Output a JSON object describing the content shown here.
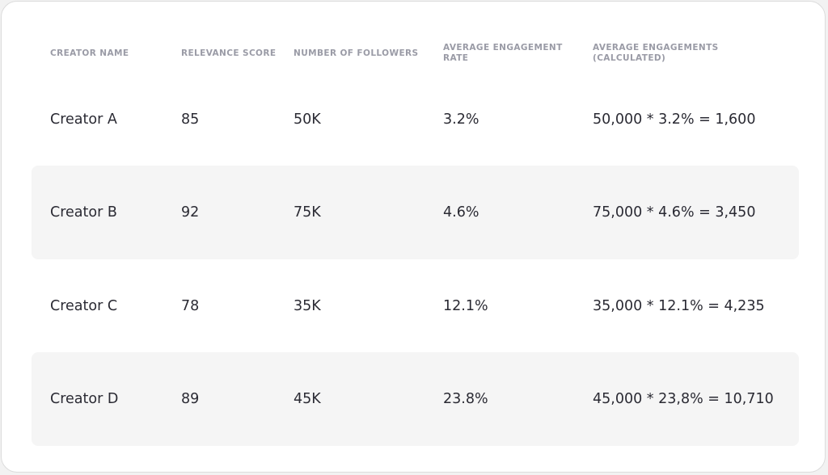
{
  "table": {
    "headers": [
      "CREATOR NAME",
      "RELEVANCE SCORE",
      "NUMBER OF FOLLOWERS",
      "AVERAGE ENGAGEMENT\nRATE",
      "AVERAGE ENGAGEMENTS\n(CALCULATED)"
    ],
    "rows": [
      [
        "Creator A",
        "85",
        "50K",
        "3.2%",
        "50,000 * 3.2% = 1,600"
      ],
      [
        "Creator B",
        "92",
        "75K",
        "4.6%",
        "75,000 * 4.6% = 3,450"
      ],
      [
        "Creator C",
        "78",
        "35K",
        "12.1%",
        "35,000 * 12.1% = 4,235"
      ],
      [
        "Creator D",
        "89",
        "45K",
        "23.8%",
        "45,000 * 23,8% = 10,710"
      ]
    ]
  }
}
